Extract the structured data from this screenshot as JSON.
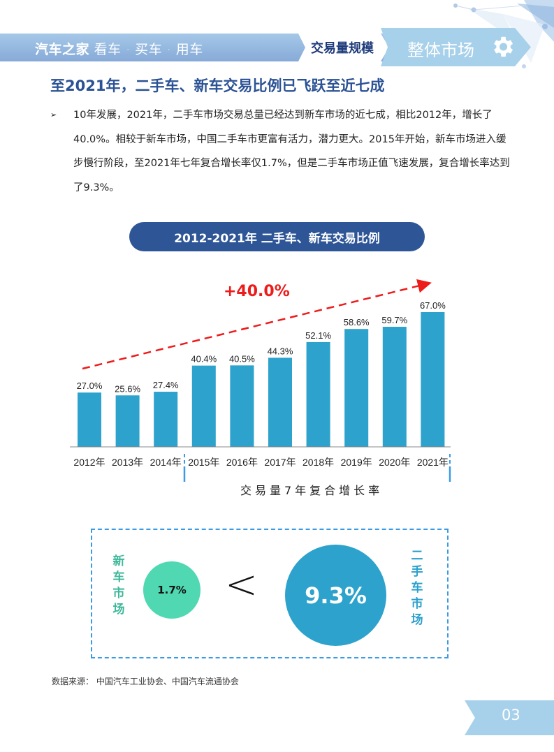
{
  "header": {
    "brand_bold": "汽车之家",
    "brand_slogan": "看车 · 买车 · 用车",
    "section_tag": "交易量规模",
    "section_title": "整体市场",
    "section_icon": "gear-icon"
  },
  "headline": "至2021年，二手车、新车交易比例已飞跃至近七成",
  "paragraph": {
    "bullet": "➢",
    "text": "10年发展，2021年，二手车市场交易总量已经达到新车市场的近七成，相比2012年，增长了40.0%。相较于新车市场，中国二手车市更富有活力，潜力更大。2015年开始，新车市场进入缓步慢行阶段，至2021年七年复合增长率仅1.7%，但是二手车市场正值飞速发展，复合增长率达到了9.3%。"
  },
  "chart_data": [
    {
      "type": "bar",
      "title": "2012-2021年 二手车、新车交易比例",
      "categories": [
        "2012年",
        "2013年",
        "2014年",
        "2015年",
        "2016年",
        "2017年",
        "2018年",
        "2019年",
        "2020年",
        "2021年"
      ],
      "values": [
        27.0,
        25.6,
        27.4,
        40.4,
        40.5,
        44.3,
        52.1,
        58.6,
        59.7,
        67.0
      ],
      "value_labels": [
        "27.0%",
        "25.6%",
        "27.4%",
        "40.4%",
        "40.5%",
        "44.3%",
        "52.1%",
        "58.6%",
        "59.7%",
        "67.0%"
      ],
      "xlabel": "",
      "ylabel": "",
      "ylim": [
        0,
        75
      ],
      "grid": false,
      "bar_color": "#2ca2cc",
      "annotations": [
        {
          "text": "+40.0%",
          "type": "dashed-trend-arrow",
          "color": "#ee1b1b",
          "from": "2012年",
          "to": "2021年"
        },
        {
          "text": "交易量7年复合增长率",
          "type": "brace",
          "range": [
            "2015年",
            "2021年"
          ]
        }
      ]
    },
    {
      "type": "bubble-comparison",
      "title": "交易量7年复合增长率",
      "series": [
        {
          "name": "新车市场",
          "value": 1.7,
          "label": "1.7%",
          "color": "#4fd8b2"
        },
        {
          "name": "二手车市场",
          "value": 9.3,
          "label": "9.3%",
          "color": "#2ca2cc"
        }
      ],
      "comparator": "<"
    }
  ],
  "chart": {
    "title": "2012-2021年 二手车、新车交易比例",
    "growth_label": "+40.0%",
    "cagr_label": "交易量7年复合增长率"
  },
  "comparison": {
    "new_market_label": "新车市场",
    "new_market_chars": [
      "新",
      "车",
      "市",
      "场"
    ],
    "new_market_value": "1.7%",
    "comparator": "<",
    "used_market_label": "二手车市场",
    "used_market_chars": [
      "二",
      "手",
      "车",
      "市",
      "场"
    ],
    "used_market_value": "9.3%"
  },
  "footer": {
    "source": "数据来源： 中国汽车工业协会、中国汽车流通协会",
    "page_number": "03"
  }
}
